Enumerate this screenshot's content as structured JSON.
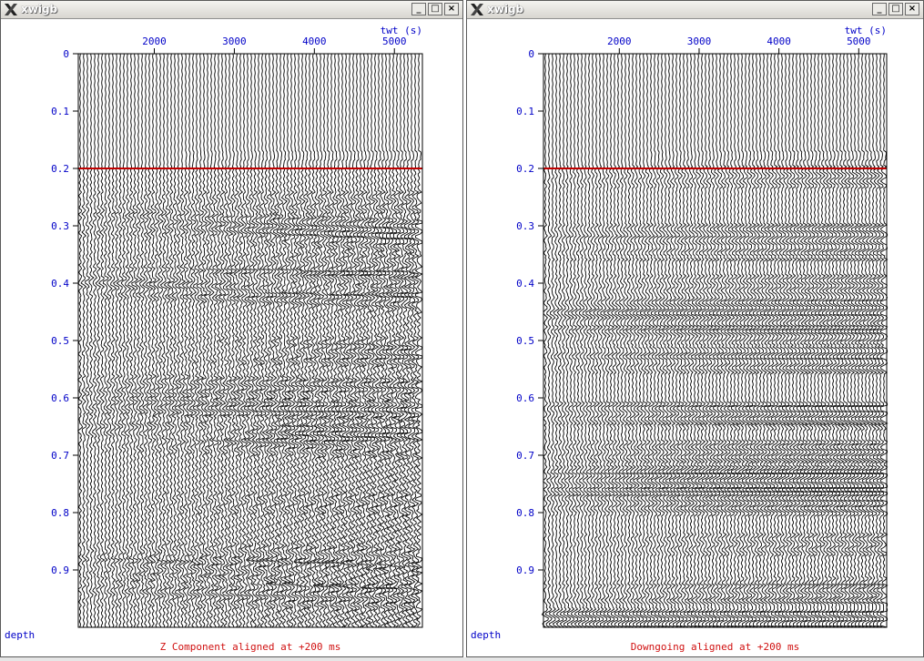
{
  "windows": [
    {
      "title": "xwigb",
      "caption": "Z Component aligned at +200 ms",
      "mode": "raw"
    },
    {
      "title": "xwigb",
      "caption": "Downgoing aligned at +200 ms",
      "mode": "downgoing"
    }
  ],
  "window_buttons": {
    "minimize": "_",
    "maximize": "□",
    "close": "×"
  },
  "axes": {
    "x_label": "twt (s)",
    "x_ticks": [
      "2000",
      "3000",
      "4000",
      "5000"
    ],
    "y_label": "depth",
    "y_ticks": [
      "0",
      "0.1",
      "0.2",
      "0.3",
      "0.4",
      "0.5",
      "0.6",
      "0.7",
      "0.8",
      "0.9"
    ]
  },
  "chart_data": [
    {
      "type": "heatmap",
      "title": "Z Component aligned at +200 ms",
      "xlabel": "twt (s)",
      "ylabel": "depth",
      "x_ticks": [
        2000,
        3000,
        4000,
        5000
      ],
      "y_ticks": [
        0,
        0.1,
        0.2,
        0.3,
        0.4,
        0.5,
        0.6,
        0.7,
        0.8,
        0.9
      ],
      "xlim": [
        1050,
        5350
      ],
      "ylim": [
        0,
        1.0
      ],
      "alignment_line": 0.2,
      "alignment_color": "#c00000"
    },
    {
      "type": "heatmap",
      "title": "Downgoing aligned at +200 ms",
      "xlabel": "twt (s)",
      "ylabel": "depth",
      "x_ticks": [
        2000,
        3000,
        4000,
        5000
      ],
      "y_ticks": [
        0,
        0.1,
        0.2,
        0.3,
        0.4,
        0.5,
        0.6,
        0.7,
        0.8,
        0.9
      ],
      "xlim": [
        1050,
        5350
      ],
      "ylim": [
        0,
        1.0
      ],
      "alignment_line": 0.2,
      "alignment_color": "#c00000"
    }
  ],
  "colors": {
    "tick_label": "#0000c8",
    "caption": "#d01010",
    "alignment": "#c00000",
    "trace": "#000000"
  }
}
